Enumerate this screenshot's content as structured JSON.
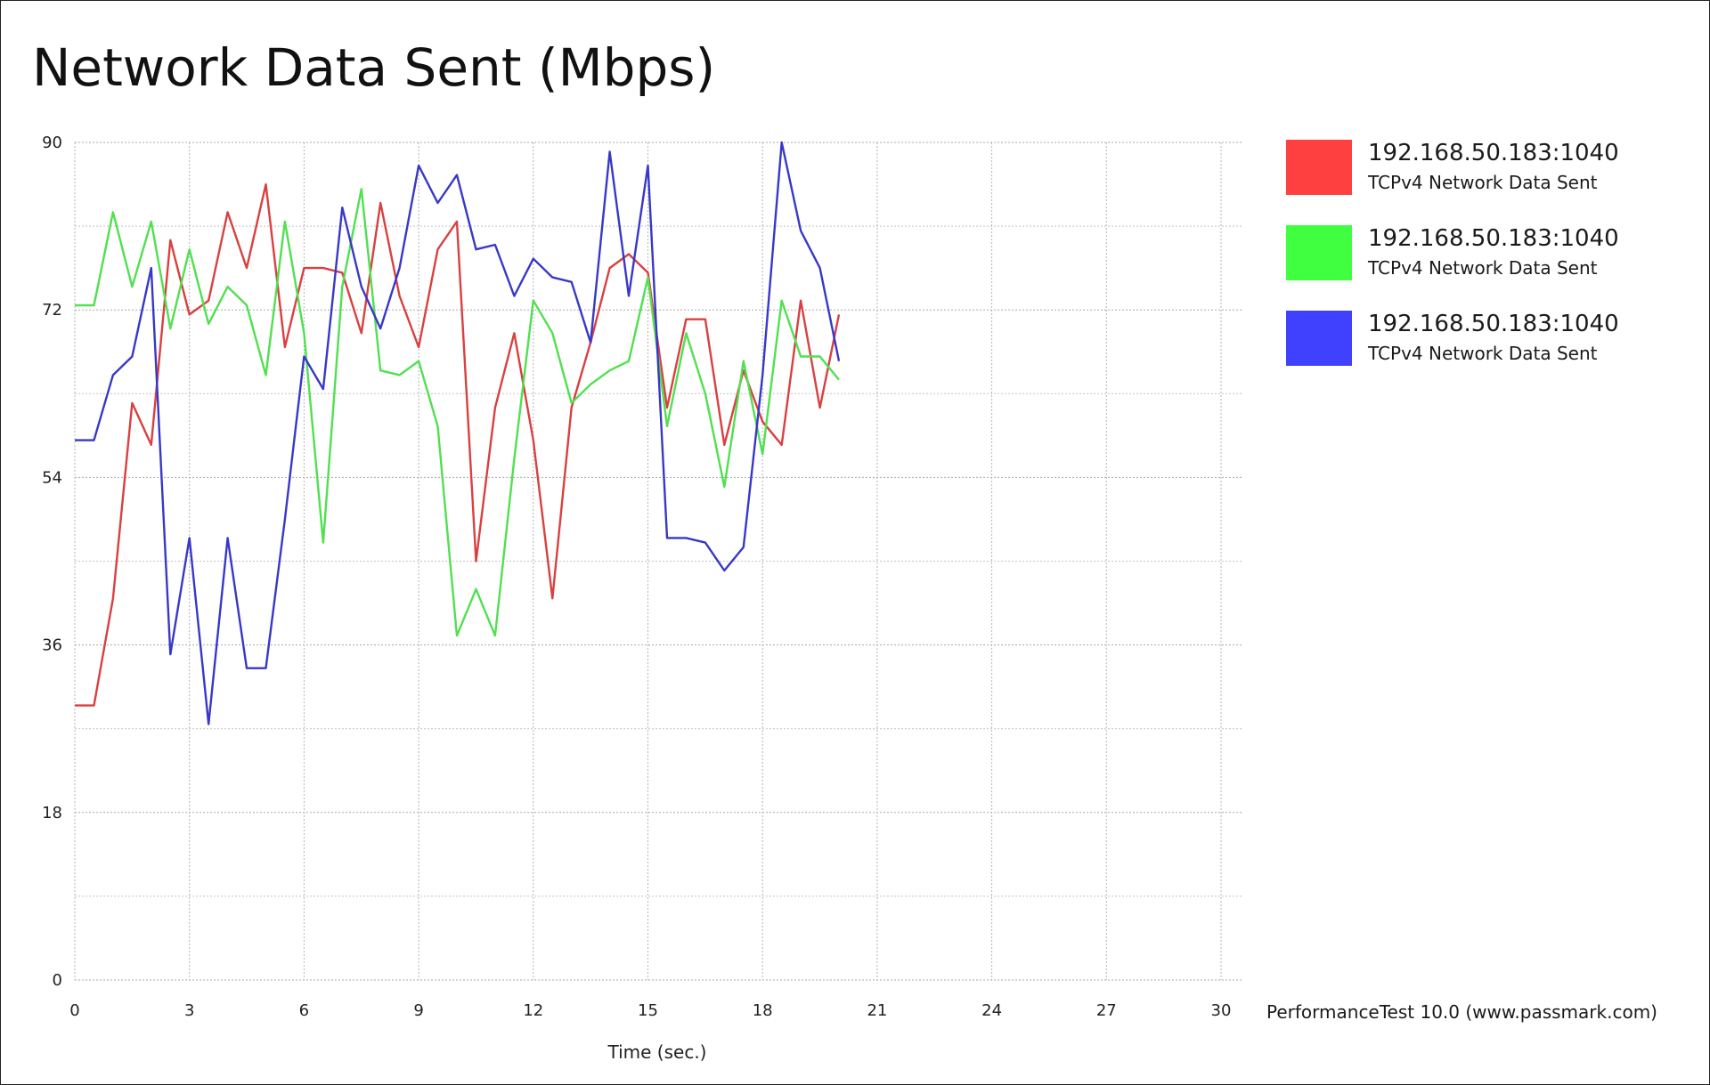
{
  "chart_data": {
    "type": "line",
    "title": "Network Data Sent (Mbps)",
    "xlabel": "Time (sec.)",
    "ylabel": "",
    "xlim": [
      0,
      30
    ],
    "ylim": [
      0,
      90
    ],
    "xticks": [
      0,
      3,
      6,
      9,
      12,
      15,
      18,
      21,
      24,
      27,
      30
    ],
    "yticks": [
      0,
      18,
      36,
      54,
      72,
      90
    ],
    "grid": true,
    "legend_position": "right",
    "x": [
      0,
      0.5,
      1,
      1.5,
      2,
      2.5,
      3,
      3.5,
      4,
      4.5,
      5,
      5.5,
      6,
      6.5,
      7,
      7.5,
      8,
      8.5,
      9,
      9.5,
      10,
      10.5,
      11,
      11.5,
      12,
      12.5,
      13,
      13.5,
      14,
      14.5,
      15,
      15.5,
      16,
      16.5,
      17,
      17.5,
      18,
      18.5,
      19,
      19.5,
      20
    ],
    "series": [
      {
        "name": "192.168.50.183:1040",
        "description": "TCPv4 Network Data Sent",
        "color": "#ff4040",
        "line_color": "#d94040",
        "values": [
          29.5,
          29.5,
          41,
          62,
          57.5,
          79.5,
          71.5,
          73,
          82.5,
          76.5,
          85.5,
          68,
          76.5,
          76.5,
          76,
          69.5,
          83.5,
          73.5,
          68,
          78.5,
          81.5,
          45,
          61.5,
          69.5,
          58,
          41,
          61.5,
          68.5,
          76.5,
          78,
          76,
          61.5,
          71,
          71,
          57.5,
          65.5,
          60,
          57.5,
          73,
          61.5,
          71.5
        ]
      },
      {
        "name": "192.168.50.183:1040",
        "description": "TCPv4 Network Data Sent",
        "color": "#40ff40",
        "line_color": "#50e050",
        "values": [
          72.5,
          72.5,
          82.5,
          74.5,
          81.5,
          70,
          78.5,
          70.5,
          74.5,
          72.5,
          65,
          81.5,
          69.5,
          47,
          74.5,
          85,
          65.5,
          65,
          66.5,
          59.5,
          37,
          42,
          37,
          56,
          73,
          69.5,
          62,
          64,
          65.5,
          66.5,
          75.5,
          59.5,
          69.5,
          63,
          53,
          66.5,
          56.5,
          73,
          67,
          67,
          64.5
        ]
      },
      {
        "name": "192.168.50.183:1040",
        "description": "TCPv4 Network Data Sent",
        "color": "#4040ff",
        "line_color": "#3838c8",
        "values": [
          58,
          58,
          65,
          67,
          76.5,
          35,
          47.5,
          27.5,
          47.5,
          33.5,
          33.5,
          49.5,
          67,
          63.5,
          83,
          74.5,
          70,
          76.5,
          87.5,
          83.5,
          86.5,
          78.5,
          79,
          73.5,
          77.5,
          75.5,
          75,
          68.5,
          89,
          73.5,
          87.5,
          47.5,
          47.5,
          47,
          44,
          46.5,
          65,
          90,
          80.5,
          76.5,
          66.5
        ]
      }
    ],
    "annotation": "PerformanceTest 10.0 (www.passmark.com)"
  }
}
